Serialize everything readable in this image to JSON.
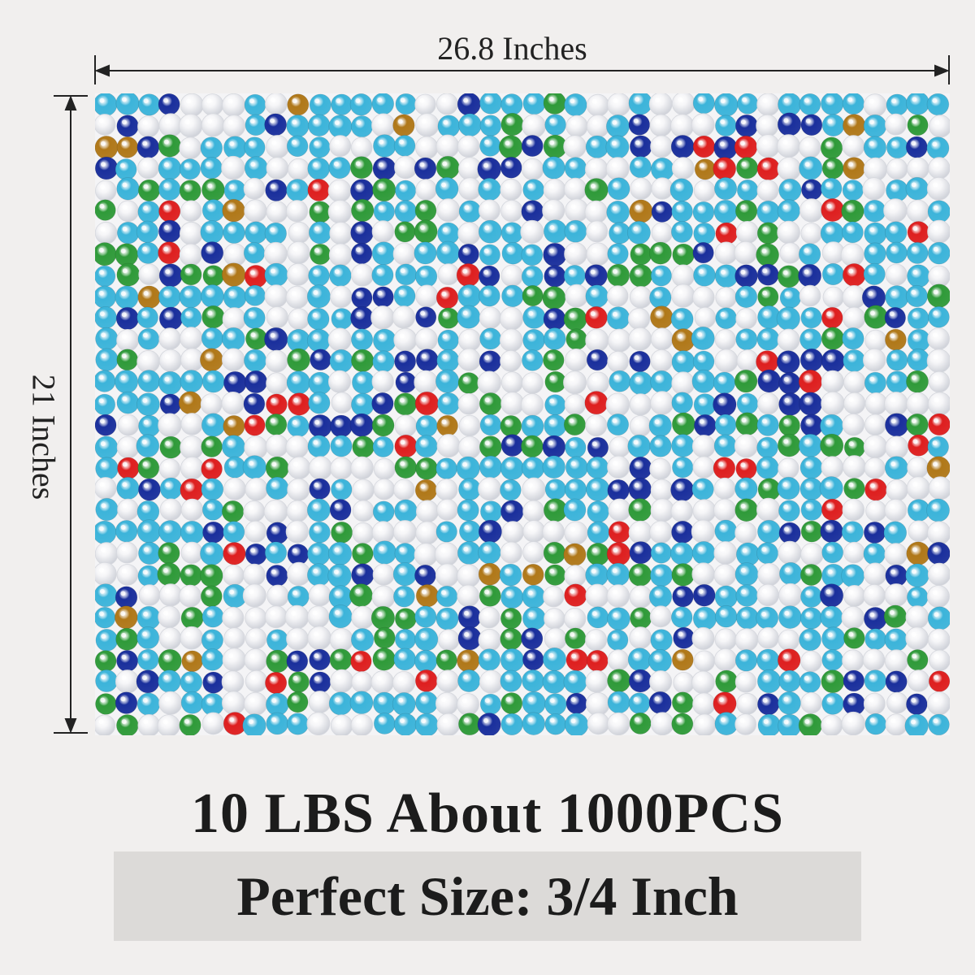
{
  "dimensions": {
    "width_label": "26.8 Inches",
    "height_label": "21 Inches"
  },
  "headline": "10 LBS About 1000PCS",
  "size_banner": "Perfect Size: 3/4 Inch",
  "gems": {
    "colors": {
      "clear": "#f6f6f8",
      "light-blue": "#3cb4da",
      "dark-blue": "#1a2f9c",
      "green": "#2f9a39",
      "red": "#de1f1f",
      "amber": "#b07819"
    },
    "mix_weights": {
      "clear": 34,
      "light-blue": 38,
      "dark-blue": 11,
      "green": 11,
      "red": 3,
      "amber": 3
    },
    "columns": 40,
    "rows": 30
  }
}
